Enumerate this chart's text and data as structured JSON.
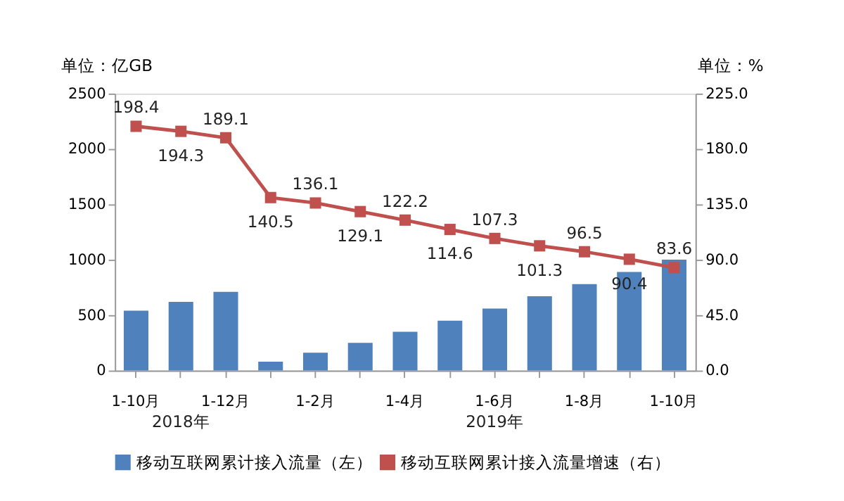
{
  "chart_data": {
    "type": "bar",
    "categories": [
      "1-10月",
      null,
      "1-12月",
      null,
      "1-2月",
      null,
      "1-4月",
      null,
      "1-6月",
      null,
      "1-8月",
      null,
      "1-10月"
    ],
    "series": [
      {
        "name": "移动互联网累计接入流量（左）",
        "color": "#4f81bd",
        "values": [
          540,
          620,
          710,
          80,
          160,
          250,
          350,
          450,
          560,
          670,
          780,
          890,
          1000
        ]
      },
      {
        "name": "移动互联网累计接入流量增速（右）",
        "type": "line",
        "axis": "y2",
        "color": "#c0504d",
        "marker": "square",
        "data_labels": true,
        "values": [
          198.4,
          194.3,
          189.1,
          140.5,
          136.1,
          129.1,
          122.2,
          114.6,
          107.3,
          101.3,
          96.5,
          90.4,
          83.6
        ]
      }
    ],
    "ylabel": "单位：亿GB",
    "y2label": "单位：%",
    "ylim": [
      0,
      2500
    ],
    "yticks": [
      0,
      500,
      1000,
      1500,
      2000,
      2500
    ],
    "y2lim": [
      0,
      225
    ],
    "y2ticks": [
      {
        "value": 0,
        "label": "0.0"
      },
      {
        "value": 45,
        "label": "45.0"
      },
      {
        "value": 90,
        "label": "90.0"
      },
      {
        "value": 135,
        "label": "135.0"
      },
      {
        "value": 180,
        "label": "180.0"
      },
      {
        "value": 225,
        "label": "225.0"
      }
    ],
    "annotations": [
      "2018年",
      "2019年"
    ],
    "grid": false,
    "legend": "bottom"
  }
}
